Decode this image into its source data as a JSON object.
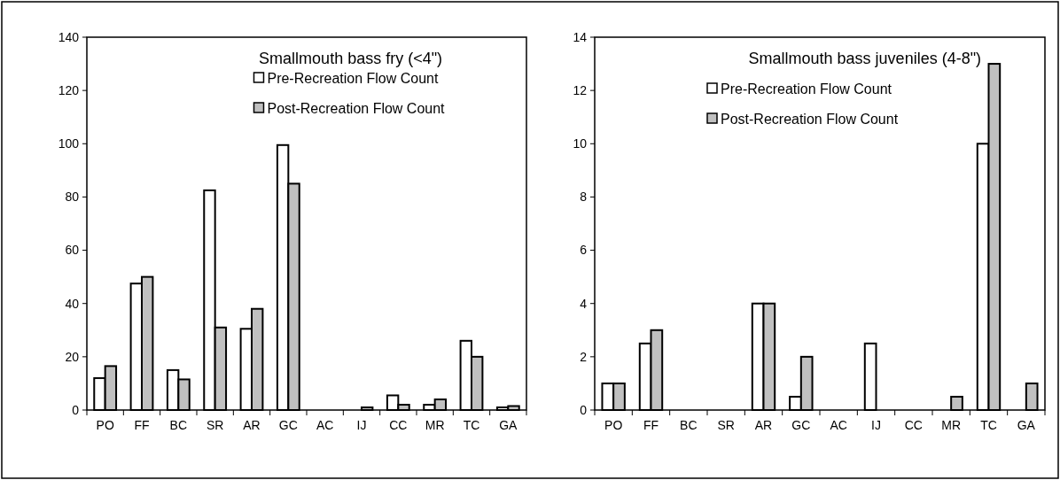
{
  "chart_data": [
    {
      "type": "bar",
      "title": "Smallmouth bass fry (<4\")",
      "categories": [
        "PO",
        "FF",
        "BC",
        "SR",
        "AR",
        "GC",
        "AC",
        "IJ",
        "CC",
        "MR",
        "TC",
        "GA"
      ],
      "series": [
        {
          "name": "Pre-Recreation Flow Count",
          "color": "#ffffff",
          "values": [
            12,
            47.5,
            15,
            82.5,
            30.5,
            99.5,
            0,
            0,
            5.5,
            2,
            26,
            1
          ]
        },
        {
          "name": "Post-Recreation Flow Count",
          "color": "#c0c0c0",
          "values": [
            16.5,
            50,
            11.5,
            31,
            38,
            85,
            0,
            1,
            2,
            4,
            20,
            1.5
          ]
        }
      ],
      "ylim": [
        0,
        140
      ],
      "yticks": [
        0,
        20,
        40,
        60,
        80,
        100,
        120,
        140
      ],
      "legend": "top",
      "grid": false
    },
    {
      "type": "bar",
      "title": "Smallmouth bass juveniles (4-8\")",
      "categories": [
        "PO",
        "FF",
        "BC",
        "SR",
        "AR",
        "GC",
        "AC",
        "IJ",
        "CC",
        "MR",
        "TC",
        "GA"
      ],
      "series": [
        {
          "name": "Pre-Recreation Flow Count",
          "color": "#ffffff",
          "values": [
            1,
            2.5,
            0,
            0,
            4,
            0.5,
            0,
            2.5,
            0,
            0,
            10,
            0
          ]
        },
        {
          "name": "Post-Recreation Flow Count",
          "color": "#c0c0c0",
          "values": [
            1,
            3,
            0,
            0,
            4,
            2,
            0,
            0,
            0,
            0.5,
            13,
            1
          ]
        }
      ],
      "ylim": [
        0,
        14
      ],
      "yticks": [
        0,
        2,
        4,
        6,
        8,
        10,
        12,
        14
      ],
      "legend": "top left",
      "grid": false
    }
  ]
}
